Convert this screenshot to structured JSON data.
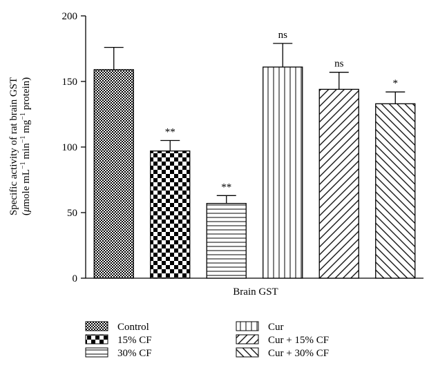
{
  "chart_data": {
    "type": "bar",
    "title": "",
    "xlabel": "Brain GST",
    "ylabel_line1": "Specific activity of rat brain GST",
    "ylabel_line2": {
      "open": "(",
      "mu": "μ",
      "p1": "mole mL",
      "e1": "−1",
      "p2": " min",
      "e2": "−1",
      "p3": " mg",
      "e3": "−1",
      "p4": " protein)"
    },
    "ylim": [
      0,
      200
    ],
    "yticks": [
      "0",
      "50",
      "100",
      "150",
      "200"
    ],
    "grid": false,
    "legend_position": "bottom",
    "categories": [
      "Control",
      "15% CF",
      "30% CF",
      "Cur",
      "Cur + 15% CF",
      "Cur + 30% CF"
    ],
    "values": [
      159,
      97,
      57,
      161,
      144,
      133
    ],
    "errors": [
      17,
      8,
      6,
      18,
      13,
      9
    ],
    "significance": [
      "",
      "**",
      "**",
      "ns",
      "ns",
      "*"
    ],
    "patterns": [
      "dense-check",
      "checker",
      "horizontal",
      "vertical",
      "diagonal-up",
      "diagonal-down"
    ],
    "colors": {
      "ink": "#000000",
      "background": "#ffffff"
    }
  }
}
